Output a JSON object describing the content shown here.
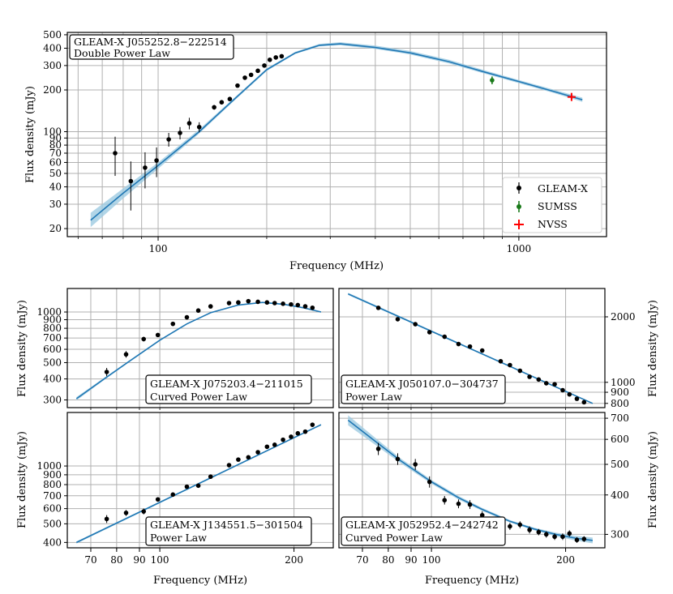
{
  "colors": {
    "fit": "#1f77b4",
    "band": "#9ecae1",
    "gleam": "#000000",
    "sumss": "#1a7a1a",
    "nvss": "#ff0000",
    "grid": "#b0b0b0"
  },
  "chart_data": [
    {
      "id": "main",
      "type": "scatter",
      "title": "GLEAM-X J055252.8−222514",
      "subtitle": "Double Power Law",
      "xlabel": "Frequency (MHz)",
      "ylabel": "Flux density (mJy)",
      "xscale": "log",
      "yscale": "log",
      "xlim": [
        56,
        1750
      ],
      "ylim": [
        17.5,
        520
      ],
      "xticks": [
        100,
        1000
      ],
      "yticks": [
        20,
        30,
        40,
        50,
        60,
        70,
        80,
        90,
        100,
        200,
        300,
        400,
        500
      ],
      "legend": {
        "placement": "lower-right",
        "entries": [
          "GLEAM-X",
          "SUMSS",
          "NVSS"
        ]
      },
      "grid": true,
      "series": [
        {
          "name": "GLEAM-X",
          "marker": "dot",
          "x": [
            76,
            84,
            92,
            99,
            107,
            115,
            122,
            130,
            143,
            150,
            158,
            166,
            174,
            181,
            189,
            197,
            204,
            212,
            220
          ],
          "y": [
            70,
            44,
            55,
            62,
            88,
            98,
            115,
            108,
            150,
            163,
            172,
            215,
            245,
            257,
            275,
            300,
            330,
            343,
            350
          ],
          "yerr": [
            22,
            17,
            16,
            15,
            10,
            10,
            11,
            9,
            6,
            6,
            6,
            7,
            7,
            7,
            8,
            8,
            9,
            9,
            10
          ]
        },
        {
          "name": "SUMSS",
          "marker": "dot",
          "x": [
            843
          ],
          "y": [
            235
          ],
          "yerr": [
            15
          ]
        },
        {
          "name": "NVSS",
          "marker": "plus",
          "x": [
            1400
          ],
          "y": [
            178
          ],
          "yerr": [
            6
          ]
        }
      ],
      "fit": {
        "x": [
          65,
          80,
          100,
          130,
          160,
          200,
          240,
          280,
          320,
          400,
          500,
          640,
          800,
          1000,
          1250,
          1500
        ],
        "y": [
          23,
          36,
          57,
          100,
          165,
          280,
          370,
          420,
          430,
          405,
          370,
          320,
          270,
          230,
          195,
          170
        ],
        "lo": [
          20.5,
          33,
          54,
          97,
          161,
          274,
          364,
          412,
          420,
          395,
          360,
          311,
          263,
          224,
          190,
          164
        ],
        "hi": [
          26,
          39,
          60,
          104,
          169,
          286,
          377,
          430,
          442,
          418,
          382,
          330,
          278,
          236,
          201,
          176
        ]
      }
    },
    {
      "id": "p1",
      "type": "scatter",
      "title": "GLEAM-X J075203.4−211015",
      "subtitle": "Curved Power Law",
      "xlabel": "",
      "ylabel": "Flux density (mJy)",
      "xscale": "log",
      "yscale": "log",
      "xlim": [
        62,
        245
      ],
      "ylim": [
        270,
        1380
      ],
      "xticks": [],
      "yticks": [
        300,
        400,
        500,
        600,
        700,
        800,
        900,
        1000
      ],
      "grid": true,
      "series": [
        {
          "name": "GLEAM-X",
          "marker": "dot",
          "x": [
            76,
            84,
            92,
            99,
            107,
            115,
            122,
            130,
            143,
            150,
            158,
            166,
            174,
            181,
            189,
            197,
            204,
            212,
            220
          ],
          "y": [
            440,
            560,
            690,
            730,
            850,
            930,
            1020,
            1080,
            1130,
            1140,
            1160,
            1150,
            1140,
            1130,
            1120,
            1110,
            1100,
            1080,
            1060
          ],
          "yerr": [
            25,
            25,
            22,
            20,
            15,
            15,
            15,
            15,
            15,
            15,
            15,
            15,
            15,
            15,
            15,
            15,
            15,
            15,
            15
          ]
        }
      ],
      "fit": {
        "x": [
          65,
          75,
          85,
          100,
          115,
          130,
          150,
          170,
          190,
          210,
          230
        ],
        "y": [
          305,
          400,
          505,
          680,
          850,
          990,
          1100,
          1140,
          1110,
          1060,
          1000
        ],
        "lo": [
          298,
          394,
          499,
          674,
          844,
          984,
          1094,
          1134,
          1104,
          1053,
          992
        ],
        "hi": [
          312,
          406,
          511,
          686,
          856,
          996,
          1106,
          1146,
          1116,
          1067,
          1008
        ]
      }
    },
    {
      "id": "p2",
      "type": "scatter",
      "title": "GLEAM-X J050107.0−304737",
      "subtitle": "Power Law",
      "xlabel": "",
      "ylabel": "Flux density (mJy)",
      "xscale": "log",
      "yscale": "log",
      "xlim": [
        62,
        245
      ],
      "ylim": [
        765,
        2700
      ],
      "xticks": [],
      "yticks": [
        800,
        900,
        1000,
        2000
      ],
      "grid": true,
      "series": [
        {
          "name": "GLEAM-X",
          "marker": "dot",
          "x": [
            76,
            84,
            92,
            99,
            107,
            115,
            122,
            130,
            143,
            150,
            158,
            166,
            174,
            181,
            189,
            197,
            204,
            212,
            220
          ],
          "y": [
            2200,
            1950,
            1850,
            1700,
            1620,
            1500,
            1460,
            1400,
            1250,
            1200,
            1130,
            1060,
            1030,
            990,
            980,
            920,
            880,
            840,
            810
          ],
          "yerr": [
            25,
            25,
            22,
            20,
            20,
            18,
            18,
            18,
            15,
            15,
            15,
            15,
            15,
            15,
            15,
            15,
            15,
            15,
            15
          ]
        }
      ],
      "fit": {
        "x": [
          65,
          230
        ],
        "y": [
          2550,
          800
        ],
        "lo": [
          2520,
          795
        ],
        "hi": [
          2580,
          805
        ]
      }
    },
    {
      "id": "p3",
      "type": "scatter",
      "title": "GLEAM-X J134551.5−301504",
      "subtitle": "Power Law",
      "xlabel": "Frequency (MHz)",
      "ylabel": "Flux density (mJy)",
      "xscale": "log",
      "yscale": "log",
      "xlim": [
        62,
        245
      ],
      "ylim": [
        375,
        1900
      ],
      "xticks": [
        70,
        80,
        90,
        100,
        200
      ],
      "yticks": [
        400,
        500,
        600,
        700,
        800,
        900,
        1000
      ],
      "grid": true,
      "series": [
        {
          "name": "GLEAM-X",
          "marker": "dot",
          "x": [
            76,
            84,
            92,
            99,
            107,
            115,
            122,
            130,
            143,
            150,
            158,
            166,
            174,
            181,
            189,
            197,
            204,
            212,
            220
          ],
          "y": [
            530,
            570,
            580,
            670,
            710,
            780,
            790,
            880,
            1010,
            1080,
            1110,
            1180,
            1260,
            1290,
            1370,
            1420,
            1480,
            1510,
            1640
          ],
          "yerr": [
            25,
            20,
            20,
            18,
            18,
            15,
            15,
            15,
            15,
            15,
            15,
            15,
            15,
            15,
            15,
            15,
            15,
            15,
            15
          ]
        }
      ],
      "fit": {
        "x": [
          65,
          230
        ],
        "y": [
          400,
          1640
        ],
        "lo": [
          395,
          1630
        ],
        "hi": [
          405,
          1650
        ]
      }
    },
    {
      "id": "p4",
      "type": "scatter",
      "title": "GLEAM-X J052952.4−242742",
      "subtitle": "Curved Power Law",
      "xlabel": "Frequency (MHz)",
      "ylabel": "Flux density (mJy)",
      "xscale": "log",
      "yscale": "log",
      "xlim": [
        62,
        245
      ],
      "ylim": [
        272,
        730
      ],
      "xticks": [
        70,
        80,
        90,
        100,
        200
      ],
      "yticks": [
        300,
        400,
        500,
        600,
        700
      ],
      "grid": true,
      "series": [
        {
          "name": "GLEAM-X",
          "marker": "dot",
          "x": [
            76,
            84,
            92,
            99,
            107,
            115,
            122,
            130,
            143,
            150,
            158,
            166,
            174,
            181,
            189,
            197,
            204,
            212,
            220
          ],
          "y": [
            560,
            520,
            500,
            440,
            385,
            375,
            373,
            345,
            330,
            318,
            322,
            310,
            305,
            300,
            295,
            295,
            302,
            288,
            290
          ],
          "yerr": [
            25,
            22,
            20,
            18,
            12,
            12,
            12,
            10,
            8,
            8,
            8,
            8,
            7,
            7,
            7,
            7,
            7,
            6,
            6
          ]
        }
      ],
      "fit": {
        "x": [
          65,
          75,
          85,
          100,
          115,
          130,
          150,
          170,
          190,
          210,
          230
        ],
        "y": [
          690,
          590,
          515,
          440,
          392,
          360,
          330,
          312,
          300,
          292,
          287
        ],
        "lo": [
          665,
          575,
          506,
          434,
          387,
          356,
          327,
          309,
          296,
          287,
          281
        ],
        "hi": [
          715,
          605,
          524,
          446,
          397,
          364,
          333,
          315,
          304,
          297,
          293
        ]
      }
    }
  ]
}
